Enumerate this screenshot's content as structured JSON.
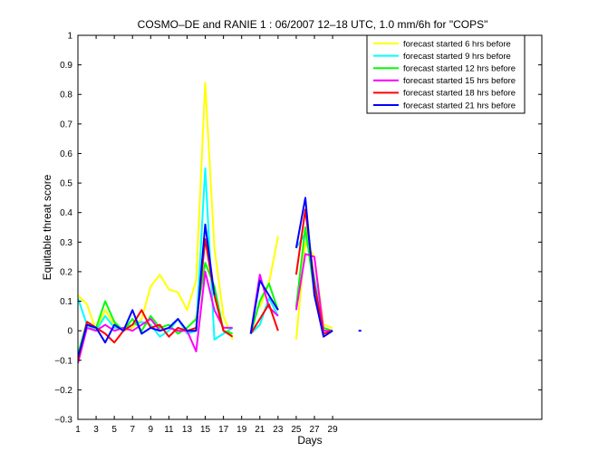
{
  "chart_data": {
    "type": "line",
    "title": "COSMO–DE and RANIE 1 : 06/2007 12–18 UTC, 1.0 mm/6h for \"COPS\"",
    "xlabel": "Days",
    "ylabel": "Equitable threat score",
    "xlim": [
      1,
      52
    ],
    "ylim": [
      -0.3,
      1
    ],
    "xticks": [
      1,
      3,
      5,
      7,
      9,
      11,
      13,
      15,
      17,
      19,
      21,
      23,
      25,
      27,
      29
    ],
    "xtick_labels": [
      "1",
      "3",
      "5",
      "7",
      "9",
      "11",
      "13",
      "15",
      "17",
      "19",
      "21",
      "23",
      "25",
      "27",
      "29"
    ],
    "yticks": [
      -0.3,
      -0.2,
      -0.1,
      0,
      0.1,
      0.2,
      0.3,
      0.4,
      0.5,
      0.6,
      0.7,
      0.8,
      0.9,
      1
    ],
    "ytick_labels": [
      "−0.3",
      "−0.2",
      "−0.1",
      "0",
      "0.1",
      "0.2",
      "0.3",
      "0.4",
      "0.5",
      "0.6",
      "0.7",
      "0.8",
      "0.9",
      "1"
    ],
    "grid": false,
    "legend_position": "top-right",
    "series": [
      {
        "name": "forecast started 6 hrs before",
        "color": "#ffff00",
        "x": [
          1,
          2,
          3,
          4,
          5,
          6,
          7,
          8,
          9,
          10,
          11,
          12,
          13,
          14,
          15,
          16,
          17,
          18,
          19,
          20,
          21,
          22,
          23,
          24,
          25,
          26,
          27,
          28,
          29,
          30,
          31,
          32,
          33
        ],
        "y": [
          0.12,
          0.09,
          0.0,
          0.07,
          0.02,
          0.0,
          0.01,
          0.04,
          0.15,
          0.19,
          0.14,
          0.13,
          0.07,
          0.17,
          0.84,
          0.28,
          0.05,
          -0.03,
          null,
          null,
          0.08,
          0.16,
          0.32,
          null,
          -0.03,
          0.3,
          0.25,
          0.02,
          0.01,
          null,
          null,
          null,
          null
        ]
      },
      {
        "name": "forecast started 9 hrs before",
        "color": "#00ffff",
        "x": [
          1,
          2,
          3,
          4,
          5,
          6,
          7,
          8,
          9,
          10,
          11,
          12,
          13,
          14,
          15,
          16,
          17,
          18,
          19,
          20,
          21,
          22,
          23,
          24,
          25,
          26,
          27,
          28,
          29,
          30,
          31,
          32,
          33
        ],
        "y": [
          0.11,
          0.02,
          0.0,
          0.05,
          0.01,
          0.01,
          0.02,
          0.03,
          0.02,
          -0.02,
          0.0,
          0.04,
          -0.01,
          0.0,
          0.55,
          -0.03,
          -0.01,
          0.01,
          null,
          -0.01,
          0.02,
          0.11,
          0.05,
          null,
          0.28,
          0.33,
          0.18,
          0.0,
          0.0,
          null,
          null,
          null,
          null
        ]
      },
      {
        "name": "forecast started 12 hrs before",
        "color": "#00ff00",
        "x": [
          1,
          2,
          3,
          4,
          5,
          6,
          7,
          8,
          9,
          10,
          11,
          12,
          13,
          14,
          15,
          16,
          17,
          18,
          19,
          20,
          21,
          22,
          23,
          24,
          25,
          26,
          27,
          28,
          29,
          30,
          31,
          32,
          33
        ],
        "y": [
          -0.08,
          0.03,
          0.01,
          0.1,
          0.03,
          0.0,
          0.04,
          0.0,
          0.05,
          0.01,
          0.02,
          -0.01,
          0.01,
          0.04,
          0.23,
          0.15,
          0.0,
          -0.01,
          null,
          -0.01,
          0.1,
          0.16,
          0.07,
          null,
          0.08,
          0.35,
          0.13,
          0.01,
          0.0,
          null,
          null,
          null,
          null
        ]
      },
      {
        "name": "forecast started 15 hrs before",
        "color": "#ff00ff",
        "x": [
          1,
          2,
          3,
          4,
          5,
          6,
          7,
          8,
          9,
          10,
          11,
          12,
          13,
          14,
          15,
          16,
          17,
          18,
          19,
          20,
          21,
          22,
          23,
          24,
          25,
          26,
          27,
          28,
          29,
          30,
          31,
          32,
          33
        ],
        "y": [
          -0.11,
          0.01,
          0.0,
          0.02,
          0.0,
          0.01,
          0.0,
          0.02,
          0.04,
          0.0,
          0.01,
          0.0,
          0.0,
          -0.07,
          0.2,
          0.07,
          0.01,
          0.01,
          null,
          -0.01,
          0.19,
          0.08,
          0.05,
          null,
          0.07,
          0.26,
          0.25,
          0.0,
          0.0,
          null,
          null,
          null,
          null
        ]
      },
      {
        "name": "forecast started 18 hrs before",
        "color": "#ff0000",
        "x": [
          1,
          2,
          3,
          4,
          5,
          6,
          7,
          8,
          9,
          10,
          11,
          12,
          13,
          14,
          15,
          16,
          17,
          18,
          19,
          20,
          21,
          22,
          23,
          24,
          25,
          26,
          27,
          28,
          29,
          30,
          31,
          32,
          33
        ],
        "y": [
          -0.1,
          0.03,
          0.01,
          -0.01,
          -0.04,
          0.0,
          0.02,
          0.07,
          0.01,
          0.02,
          -0.02,
          0.01,
          0.0,
          0.01,
          0.31,
          0.12,
          0.0,
          -0.02,
          null,
          -0.01,
          0.04,
          0.09,
          0.0,
          null,
          0.19,
          0.41,
          0.16,
          -0.01,
          0.0,
          null,
          null,
          null,
          null
        ]
      },
      {
        "name": "forecast started 21 hrs before",
        "color": "#0000ff",
        "x": [
          1,
          2,
          3,
          4,
          5,
          6,
          7,
          8,
          9,
          10,
          11,
          12,
          13,
          14,
          15,
          16,
          17,
          18,
          19,
          20,
          21,
          22,
          23,
          24,
          25,
          26,
          27,
          28,
          29,
          30,
          31,
          32,
          33
        ],
        "y": [
          -0.09,
          0.02,
          0.01,
          -0.04,
          0.02,
          0.0,
          0.07,
          -0.01,
          0.01,
          0.0,
          0.01,
          0.04,
          0.0,
          0.0,
          0.36,
          0.12,
          null,
          null,
          null,
          -0.01,
          0.17,
          0.12,
          0.07,
          null,
          0.28,
          0.45,
          0.12,
          -0.02,
          0.0,
          null,
          null,
          0.0,
          null
        ]
      }
    ]
  }
}
